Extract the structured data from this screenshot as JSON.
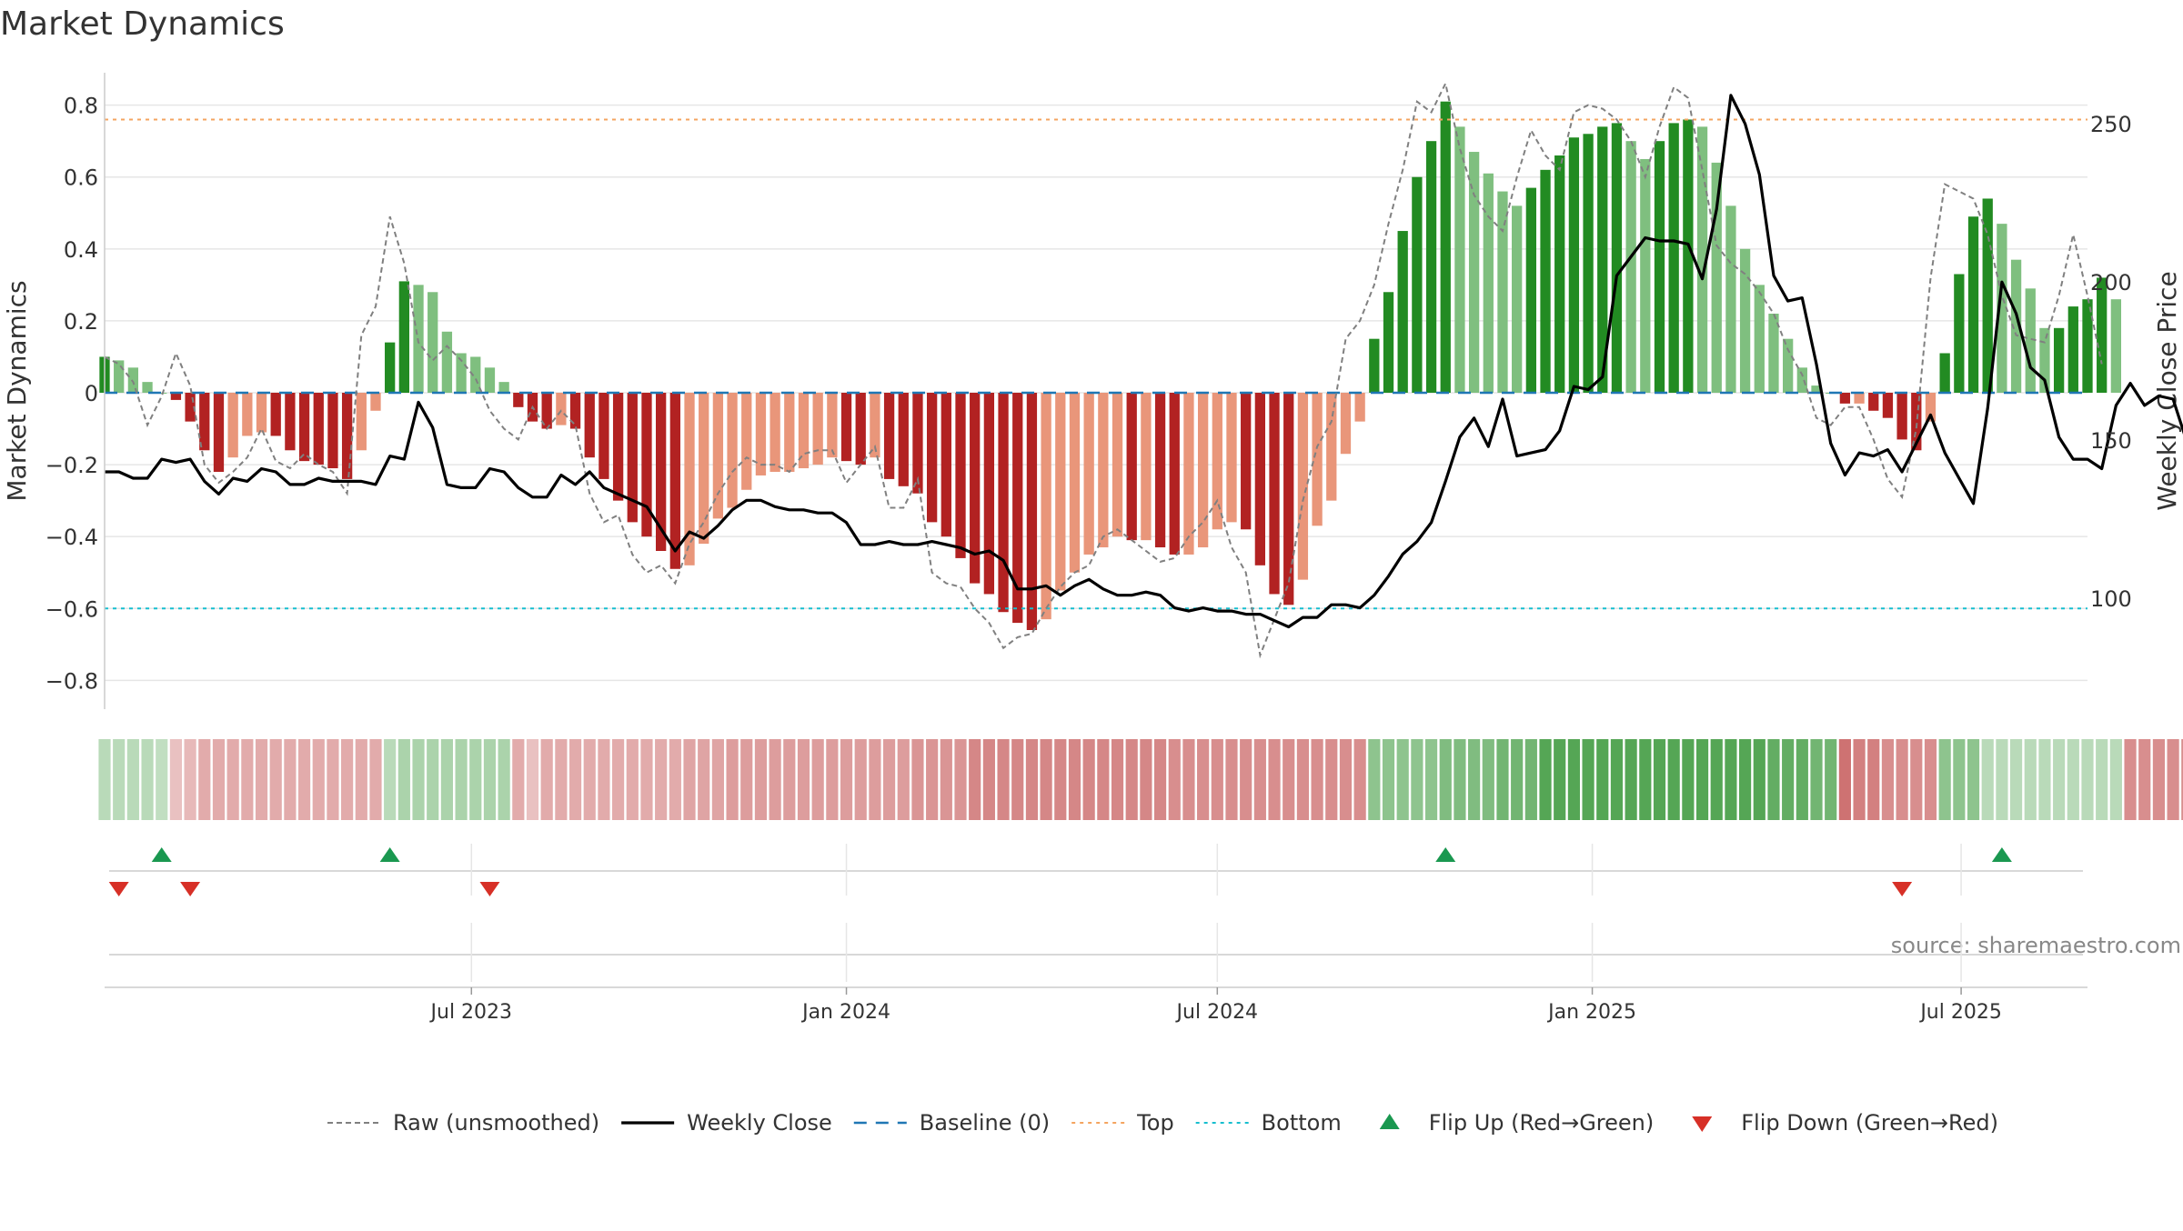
{
  "chart_data": {
    "type": "bar",
    "title": "Market Dynamics",
    "ylabel_left": "Market Dynamics",
    "ylabel_right": "Weekly Close Price",
    "source": "source: sharemaestro.com",
    "ylim_left": [
      -0.88,
      0.88
    ],
    "ylim_right": [
      65,
      265
    ],
    "yticks_left": [
      "0.8",
      "0.6",
      "0.4",
      "0.2",
      "0",
      "−0.2",
      "−0.4",
      "−0.6",
      "−0.8"
    ],
    "yticks_left_values": [
      0.8,
      0.6,
      0.4,
      0.2,
      0,
      -0.2,
      -0.4,
      -0.6,
      -0.8
    ],
    "yticks_right": [
      "250",
      "200",
      "150",
      "100"
    ],
    "yticks_right_values": [
      250,
      200,
      150,
      100
    ],
    "x_range": [
      "2023-01-02",
      "2025-09-01"
    ],
    "xticks": [
      {
        "label": "Jul 2023",
        "date": "2023-07-01"
      },
      {
        "label": "Jan 2024",
        "date": "2024-01-01"
      },
      {
        "label": "Jul 2024",
        "date": "2024-07-01"
      },
      {
        "label": "Jan 2025",
        "date": "2025-01-01"
      },
      {
        "label": "Jul 2025",
        "date": "2025-07-01"
      }
    ],
    "start_date": "2023-01-02",
    "week_days": 7,
    "top_level": 0.76,
    "bottom_level": -0.6,
    "baseline_level": 0,
    "smoothed": [
      0.1,
      0.09,
      0.07,
      0.03,
      0.0,
      -0.02,
      -0.08,
      -0.16,
      -0.22,
      -0.18,
      -0.12,
      -0.11,
      -0.12,
      -0.16,
      -0.19,
      -0.2,
      -0.21,
      -0.24,
      -0.16,
      -0.05,
      0.14,
      0.31,
      0.3,
      0.28,
      0.17,
      0.11,
      0.1,
      0.07,
      0.03,
      -0.04,
      -0.08,
      -0.1,
      -0.09,
      -0.1,
      -0.18,
      -0.24,
      -0.3,
      -0.36,
      -0.4,
      -0.44,
      -0.49,
      -0.48,
      -0.42,
      -0.35,
      -0.32,
      -0.27,
      -0.23,
      -0.22,
      -0.22,
      -0.21,
      -0.2,
      -0.18,
      -0.19,
      -0.2,
      -0.18,
      -0.24,
      -0.26,
      -0.28,
      -0.36,
      -0.4,
      -0.46,
      -0.53,
      -0.56,
      -0.61,
      -0.64,
      -0.66,
      -0.63,
      -0.55,
      -0.5,
      -0.45,
      -0.43,
      -0.4,
      -0.41,
      -0.41,
      -0.43,
      -0.45,
      -0.45,
      -0.43,
      -0.38,
      -0.36,
      -0.38,
      -0.48,
      -0.56,
      -0.59,
      -0.52,
      -0.37,
      -0.3,
      -0.17,
      -0.08,
      0.15,
      0.28,
      0.45,
      0.6,
      0.7,
      0.81,
      0.74,
      0.67,
      0.61,
      0.56,
      0.52,
      0.57,
      0.62,
      0.66,
      0.71,
      0.72,
      0.74,
      0.75,
      0.7,
      0.65,
      0.7,
      0.75,
      0.76,
      0.74,
      0.64,
      0.52,
      0.4,
      0.3,
      0.22,
      0.15,
      0.07,
      0.02,
      0.0,
      -0.03,
      -0.03,
      -0.05,
      -0.07,
      -0.13,
      -0.16,
      -0.08,
      0.11,
      0.33,
      0.49,
      0.54,
      0.47,
      0.37,
      0.29,
      0.18,
      0.18,
      0.24,
      0.26,
      0.32,
      0.26
    ],
    "raw": [
      0.1,
      0.08,
      0.03,
      -0.09,
      -0.01,
      0.11,
      0.02,
      -0.2,
      -0.25,
      -0.22,
      -0.18,
      -0.1,
      -0.19,
      -0.21,
      -0.17,
      -0.2,
      -0.22,
      -0.28,
      0.16,
      0.24,
      0.49,
      0.36,
      0.14,
      0.09,
      0.13,
      0.09,
      0.04,
      -0.05,
      -0.1,
      -0.13,
      -0.04,
      -0.1,
      -0.05,
      -0.09,
      -0.28,
      -0.36,
      -0.34,
      -0.45,
      -0.5,
      -0.48,
      -0.53,
      -0.42,
      -0.36,
      -0.28,
      -0.22,
      -0.18,
      -0.2,
      -0.2,
      -0.22,
      -0.17,
      -0.16,
      -0.16,
      -0.25,
      -0.2,
      -0.15,
      -0.32,
      -0.32,
      -0.24,
      -0.5,
      -0.53,
      -0.54,
      -0.6,
      -0.64,
      -0.71,
      -0.68,
      -0.67,
      -0.6,
      -0.54,
      -0.5,
      -0.48,
      -0.4,
      -0.38,
      -0.41,
      -0.44,
      -0.47,
      -0.46,
      -0.4,
      -0.36,
      -0.3,
      -0.43,
      -0.5,
      -0.73,
      -0.63,
      -0.53,
      -0.3,
      -0.15,
      -0.08,
      0.15,
      0.2,
      0.3,
      0.47,
      0.62,
      0.81,
      0.78,
      0.86,
      0.68,
      0.55,
      0.49,
      0.45,
      0.6,
      0.73,
      0.66,
      0.62,
      0.78,
      0.8,
      0.79,
      0.76,
      0.7,
      0.6,
      0.74,
      0.85,
      0.82,
      0.62,
      0.41,
      0.36,
      0.33,
      0.28,
      0.22,
      0.12,
      0.05,
      -0.07,
      -0.09,
      -0.04,
      -0.04,
      -0.13,
      -0.24,
      -0.29,
      -0.1,
      0.32,
      0.58,
      0.56,
      0.54,
      0.44,
      0.27,
      0.16,
      0.15,
      0.14,
      0.27,
      0.44,
      0.27,
      0.08
    ],
    "close": [
      140,
      140,
      138,
      138,
      144,
      143,
      144,
      137,
      133,
      138,
      137,
      141,
      140,
      136,
      136,
      138,
      137,
      137,
      137,
      136,
      145,
      144,
      162,
      154,
      136,
      135,
      135,
      141,
      140,
      135,
      132,
      132,
      139,
      136,
      140,
      135,
      133,
      131,
      129,
      122,
      115,
      121,
      119,
      123,
      128,
      131,
      131,
      129,
      128,
      128,
      127,
      127,
      124,
      117,
      117,
      118,
      117,
      117,
      118,
      117,
      116,
      114,
      115,
      112,
      103,
      103,
      104,
      101,
      104,
      106,
      103,
      101,
      101,
      102,
      101,
      97,
      96,
      97,
      96,
      96,
      95,
      95,
      93,
      91,
      94,
      94,
      98,
      98,
      97,
      101,
      107,
      114,
      118,
      124,
      137,
      151,
      157,
      148,
      163,
      145,
      146,
      147,
      153,
      167,
      166,
      170,
      202,
      208,
      214,
      213,
      213,
      212,
      201,
      223,
      259,
      250,
      234,
      202,
      194,
      195,
      174,
      149,
      139,
      146,
      145,
      147,
      140,
      149,
      158,
      146,
      138,
      130,
      160,
      200,
      190,
      173,
      169,
      151,
      144,
      144,
      141,
      161,
      168,
      161,
      164,
      163,
      149
    ],
    "flip_up_weeks": [
      4,
      20,
      94,
      133
    ],
    "flip_down_weeks": [
      1,
      6,
      27,
      126
    ],
    "state_strip": [
      0.1,
      0.1,
      0.1,
      0.1,
      0.05,
      0.05,
      0.1,
      0.2,
      0.2,
      0.2,
      0.2,
      0.2,
      0.2,
      0.2,
      0.2,
      0.2,
      0.2,
      0.2,
      0.2,
      0.2,
      0.1,
      0.2,
      0.2,
      0.2,
      0.2,
      0.2,
      0.2,
      0.2,
      0.2,
      0.2,
      0.05,
      0.2,
      0.2,
      0.2,
      0.2,
      0.2,
      0.2,
      0.2,
      0.2,
      0.2,
      0.2,
      0.25,
      0.25,
      0.25,
      0.3,
      0.3,
      0.3,
      0.3,
      0.3,
      0.3,
      0.3,
      0.3,
      0.3,
      0.3,
      0.3,
      0.3,
      0.3,
      0.35,
      0.35,
      0.35,
      0.35,
      0.45,
      0.45,
      0.45,
      0.45,
      0.45,
      0.45,
      0.45,
      0.45,
      0.45,
      0.45,
      0.45,
      0.45,
      0.45,
      0.45,
      0.4,
      0.4,
      0.4,
      0.4,
      0.4,
      0.4,
      0.4,
      0.4,
      0.4,
      0.4,
      0.4,
      0.4,
      0.4,
      0.4,
      0.4,
      0.4,
      0.4,
      0.4,
      0.4,
      0.5,
      0.5,
      0.5,
      0.5,
      0.6,
      0.6,
      0.6,
      0.8,
      0.8,
      0.8,
      0.8,
      0.8,
      0.8,
      0.8,
      0.8,
      0.8,
      0.8,
      0.8,
      0.8,
      0.8,
      0.8,
      0.8,
      0.8,
      0.7,
      0.7,
      0.7,
      0.6,
      0.6,
      0.6,
      0.5,
      0.5,
      0.4,
      0.4,
      0.4,
      0.4,
      0.4,
      0.4,
      0.4,
      0.1,
      0.1,
      0.1,
      0.1,
      0.1,
      0.1,
      0.1,
      0.1,
      0.1,
      0.1,
      0.4,
      0.4,
      0.4,
      0.4,
      0.4,
      0.4,
      0.4,
      0.35,
      0.35,
      0.35
    ],
    "legend": [
      {
        "label": "Raw (unsmoothed)",
        "style": "dashed-gray"
      },
      {
        "label": "Weekly Close",
        "style": "solid-black"
      },
      {
        "label": "Baseline (0)",
        "style": "dashed-blue"
      },
      {
        "label": "Top",
        "style": "dotted-orange"
      },
      {
        "label": "Bottom",
        "style": "dotted-cyan"
      },
      {
        "label": "Flip Up (Red→Green)",
        "style": "triangle-up-green"
      },
      {
        "label": "Flip Down (Green→Red)",
        "style": "triangle-down-red"
      }
    ],
    "legend_position": "bottom-center",
    "colors": {
      "green_strong": "#228b22",
      "green_light": "#7fbf7f",
      "red_strong": "#b22222",
      "red_light": "#e9967a",
      "raw_line": "#808080",
      "close_line": "#000000",
      "baseline": "#1f77b4",
      "top": "#f4a460",
      "bottom": "#17becf",
      "flip_up": "#1a9850",
      "flip_down": "#d73027",
      "grid": "#e6e6e6",
      "text": "#333333",
      "source_text": "#888888"
    }
  }
}
